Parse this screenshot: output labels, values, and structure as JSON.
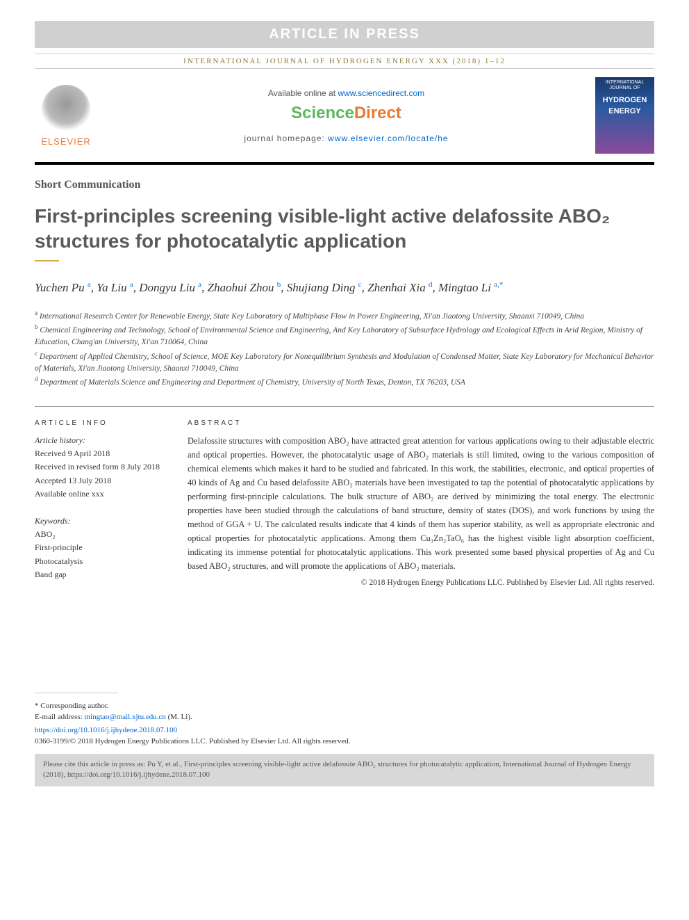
{
  "banner": {
    "article_in_press": "ARTICLE IN PRESS",
    "journal_ref": "INTERNATIONAL JOURNAL OF HYDROGEN ENERGY XXX (2018) 1–12"
  },
  "header": {
    "available_text": "Available online at ",
    "available_link": "www.sciencedirect.com",
    "brand_science": "Science",
    "brand_direct": "Direct",
    "homepage_label": "journal homepage: ",
    "homepage_link": "www.elsevier.com/locate/he",
    "publisher_name": "ELSEVIER",
    "cover_line1": "INTERNATIONAL JOURNAL OF",
    "cover_line2": "HYDROGEN",
    "cover_line3": "ENERGY"
  },
  "article": {
    "type": "Short Communication",
    "title_html": "First-principles screening visible-light active delafossite ABO₂ structures for photocatalytic application"
  },
  "authors": [
    {
      "name": "Yuchen Pu",
      "aff": "a"
    },
    {
      "name": "Ya Liu",
      "aff": "a"
    },
    {
      "name": "Dongyu Liu",
      "aff": "a"
    },
    {
      "name": "Zhaohui Zhou",
      "aff": "b"
    },
    {
      "name": "Shujiang Ding",
      "aff": "c"
    },
    {
      "name": "Zhenhai Xia",
      "aff": "d"
    },
    {
      "name": "Mingtao Li",
      "aff": "a",
      "corresponding": true
    }
  ],
  "affiliations": [
    {
      "key": "a",
      "text": "International Research Center for Renewable Energy, State Key Laboratory of Multiphase Flow in Power Engineering, Xi'an Jiaotong University, Shaanxi 710049, China"
    },
    {
      "key": "b",
      "text": "Chemical Engineering and Technology, School of Environmental Science and Engineering, And Key Laboratory of Subsurface Hydrology and Ecological Effects in Arid Region, Ministry of Education, Chang'an University, Xi'an 710064, China"
    },
    {
      "key": "c",
      "text": "Department of Applied Chemistry, School of Science, MOE Key Laboratory for Nonequilibrium Synthesis and Modulation of Condensed Matter, State Key Laboratory for Mechanical Behavior of Materials, Xi'an Jiaotong University, Shaanxi 710049, China"
    },
    {
      "key": "d",
      "text": "Department of Materials Science and Engineering and Department of Chemistry, University of North Texas, Denton, TX 76203, USA"
    }
  ],
  "article_info": {
    "heading": "ARTICLE INFO",
    "history_label": "Article history:",
    "received": "Received 9 April 2018",
    "revised": "Received in revised form 8 July 2018",
    "accepted": "Accepted 13 July 2018",
    "online": "Available online xxx",
    "keywords_label": "Keywords:",
    "keywords": [
      "ABO₂",
      "First-principle",
      "Photocatalysis",
      "Band gap"
    ]
  },
  "abstract": {
    "heading": "ABSTRACT",
    "text": "Delafossite structures with composition ABO₂ have attracted great attention for various applications owing to their adjustable electric and optical properties. However, the photocatalytic usage of ABO₂ materials is still limited, owing to the various composition of chemical elements which makes it hard to be studied and fabricated. In this work, the stabilities, electronic, and optical properties of 40 kinds of Ag and Cu based delafossite ABO₂ materials have been investigated to tap the potential of photocatalytic applications by performing first-principle calculations. The bulk structure of ABO₂ are derived by minimizing the total energy. The electronic properties have been studied through the calculations of band structure, density of states (DOS), and work functions by using the method of GGA + U. The calculated results indicate that 4 kinds of them has superior stability, as well as appropriate electronic and optical properties for photocatalytic applications. Among them Cu₃Zn₂TaO₆ has the highest visible light absorption coefficient, indicating its immense potential for photocatalytic applications. This work presented some based physical properties of Ag and Cu based ABO₂ structures, and will promote the applications of ABO₂ materials.",
    "copyright": "© 2018 Hydrogen Energy Publications LLC. Published by Elsevier Ltd. All rights reserved."
  },
  "footer": {
    "corresponding_label": "* Corresponding author.",
    "email_label": "E-mail address: ",
    "email": "mingtao@mail.xjtu.edu.cn",
    "email_name": " (M. Li).",
    "doi": "https://doi.org/10.1016/j.ijhydene.2018.07.100",
    "issn_line": "0360-3199/© 2018 Hydrogen Energy Publications LLC. Published by Elsevier Ltd. All rights reserved.",
    "cite_text": "Please cite this article in press as: Pu Y, et al., First-principles screening visible-light active delafossite ABO₂ structures for photocatalytic application, International Journal of Hydrogen Energy (2018), https://doi.org/10.1016/j.ijhydene.2018.07.100"
  },
  "colors": {
    "accent_orange": "#e8792e",
    "accent_green": "#5cb85c",
    "link_blue": "#0066cc",
    "gold_line": "#d4a843",
    "banner_gray": "#d0d0d0",
    "journal_olive": "#8a7a3a"
  }
}
